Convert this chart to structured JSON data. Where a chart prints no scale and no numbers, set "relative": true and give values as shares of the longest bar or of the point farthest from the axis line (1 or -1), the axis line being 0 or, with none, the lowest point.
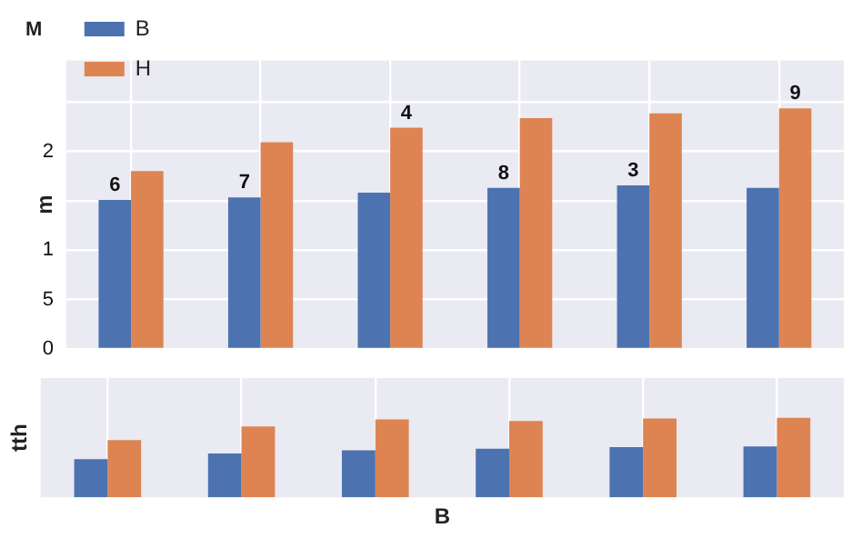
{
  "chart_data": [
    {
      "type": "bar",
      "title": "M",
      "ylabel": "m",
      "categories": [
        null,
        null,
        null,
        null,
        null,
        null
      ],
      "relative": true,
      "series": [
        {
          "name": "B",
          "color": "#4c72b0",
          "values": [
            0.62,
            0.63,
            0.65,
            0.67,
            0.68,
            0.67
          ]
        },
        {
          "name": "H",
          "color": "#dd8452",
          "values": [
            0.74,
            0.86,
            0.92,
            0.96,
            0.98,
            1
          ]
        }
      ],
      "annotations": [
        "2",
        "1",
        "5",
        "0",
        "6",
        "7",
        "4",
        "8",
        "3",
        "9"
      ],
      "grid": true,
      "legend": "top left",
      "tick_labels": false
    },
    {
      "type": "bar",
      "ylabel": "tth",
      "xlabel": "B",
      "categories": [
        null,
        null,
        null,
        null,
        null,
        null
      ],
      "relative": true,
      "series": [
        {
          "color": "#4c72b0",
          "values": [
            0.48,
            0.55,
            0.59,
            0.61,
            0.63,
            0.64
          ]
        },
        {
          "color": "#dd8452",
          "values": [
            0.72,
            0.89,
            0.98,
            0.96,
            0.99,
            1
          ]
        }
      ],
      "grid": "x",
      "tick_labels": false
    }
  ]
}
